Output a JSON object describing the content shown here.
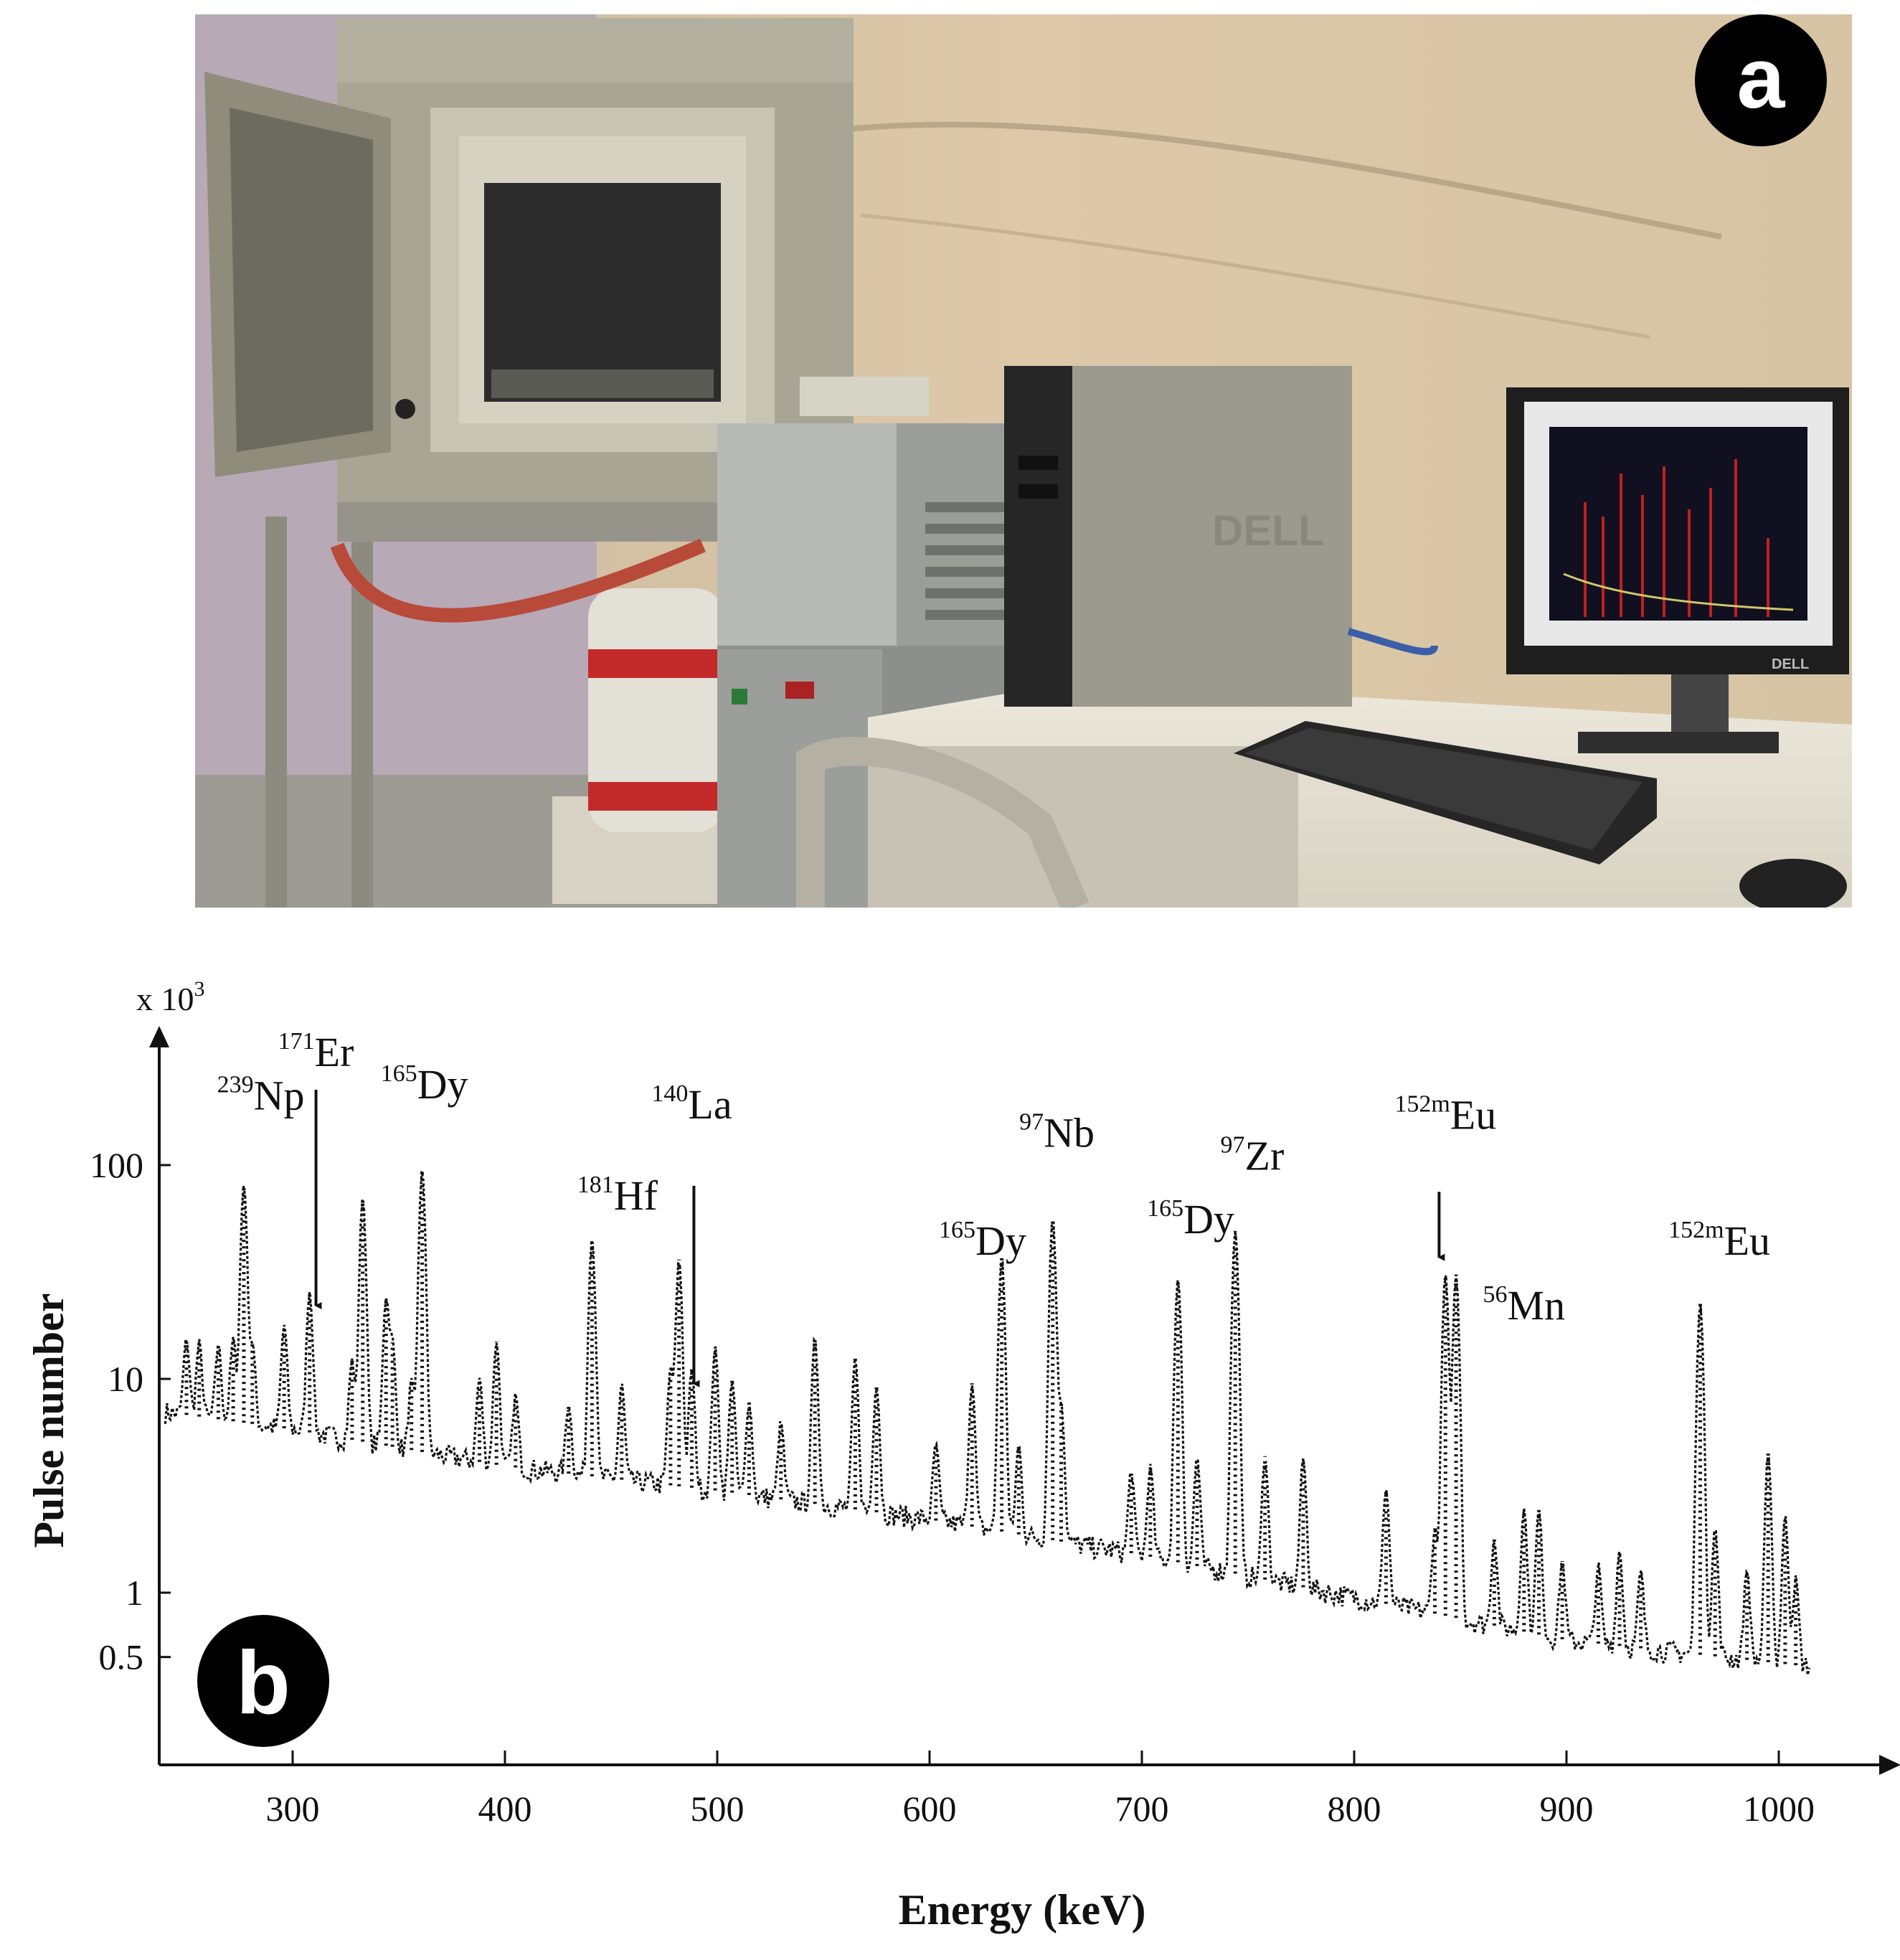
{
  "figure": {
    "panel_a_label": "a",
    "panel_b_label": "b",
    "photo": {
      "monitor_brand": "DELL",
      "tower_brand": "DELL",
      "colors": {
        "wall": "#d8c6a6",
        "furnace": "#a8a594",
        "desk": "#e3dfd2",
        "tower": "#8a8a80",
        "screen_plot": "#101020",
        "screen_peaks": "#c02020",
        "dewar_band": "#c22a2a"
      }
    }
  },
  "chart_data": {
    "type": "line",
    "xlabel": "Energy (keV)",
    "ylabel": "Pulse number",
    "y_multiplier": "x 10",
    "y_multiplier_exp": "3",
    "y_scale": "log",
    "xlim": [
      235,
      1015
    ],
    "ylim": [
      0.25,
      600
    ],
    "x_ticks": [
      300,
      400,
      500,
      600,
      700,
      800,
      900,
      1000
    ],
    "x_tick_labels": [
      "300",
      "400",
      "500",
      "600",
      "700",
      "800",
      "900",
      "1000"
    ],
    "y_ticks": [
      0.5,
      1,
      10,
      100
    ],
    "y_tick_labels": [
      "0.5",
      "1",
      "10",
      "100"
    ],
    "background": {
      "x": [
        240,
        300,
        400,
        500,
        600,
        700,
        800,
        900,
        1015
      ],
      "y": [
        7.0,
        5.8,
        3.9,
        3.0,
        2.2,
        1.5,
        0.95,
        0.6,
        0.45
      ]
    },
    "peaks": [
      {
        "x": 250,
        "y": 8.5
      },
      {
        "x": 256,
        "y": 8.0
      },
      {
        "x": 265,
        "y": 8.0
      },
      {
        "x": 272,
        "y": 9.0
      },
      {
        "x": 277,
        "y": 75
      },
      {
        "x": 281,
        "y": 8.5
      },
      {
        "x": 296,
        "y": 12
      },
      {
        "x": 308,
        "y": 20
      },
      {
        "x": 328,
        "y": 7.0
      },
      {
        "x": 333,
        "y": 65
      },
      {
        "x": 344,
        "y": 19
      },
      {
        "x": 347,
        "y": 10
      },
      {
        "x": 356,
        "y": 5.0
      },
      {
        "x": 361,
        "y": 90
      },
      {
        "x": 388,
        "y": 6.0
      },
      {
        "x": 396,
        "y": 11
      },
      {
        "x": 405,
        "y": 4.5
      },
      {
        "x": 430,
        "y": 4.0
      },
      {
        "x": 441,
        "y": 42
      },
      {
        "x": 455,
        "y": 6.0
      },
      {
        "x": 478,
        "y": 8.0
      },
      {
        "x": 482,
        "y": 33
      },
      {
        "x": 488,
        "y": 8.0
      },
      {
        "x": 499,
        "y": 11
      },
      {
        "x": 507,
        "y": 7.0
      },
      {
        "x": 515,
        "y": 5.0
      },
      {
        "x": 530,
        "y": 3.5
      },
      {
        "x": 546,
        "y": 13
      },
      {
        "x": 565,
        "y": 10
      },
      {
        "x": 575,
        "y": 7.0
      },
      {
        "x": 603,
        "y": 2.8
      },
      {
        "x": 620,
        "y": 7.5
      },
      {
        "x": 634,
        "y": 35
      },
      {
        "x": 642,
        "y": 3.0
      },
      {
        "x": 658,
        "y": 55
      },
      {
        "x": 662,
        "y": 6.0
      },
      {
        "x": 695,
        "y": 2.2
      },
      {
        "x": 704,
        "y": 2.4
      },
      {
        "x": 717,
        "y": 28
      },
      {
        "x": 726,
        "y": 3.0
      },
      {
        "x": 744,
        "y": 48
      },
      {
        "x": 758,
        "y": 3.2
      },
      {
        "x": 776,
        "y": 3.2
      },
      {
        "x": 815,
        "y": 2.2
      },
      {
        "x": 838,
        "y": 1.2
      },
      {
        "x": 843,
        "y": 30
      },
      {
        "x": 848,
        "y": 30
      },
      {
        "x": 866,
        "y": 1.1
      },
      {
        "x": 880,
        "y": 1.8
      },
      {
        "x": 887,
        "y": 1.8
      },
      {
        "x": 898,
        "y": 0.8
      },
      {
        "x": 915,
        "y": 0.75
      },
      {
        "x": 925,
        "y": 1.0
      },
      {
        "x": 935,
        "y": 0.7
      },
      {
        "x": 963,
        "y": 22
      },
      {
        "x": 970,
        "y": 1.5
      },
      {
        "x": 985,
        "y": 0.8
      },
      {
        "x": 995,
        "y": 4.0
      },
      {
        "x": 1003,
        "y": 1.8
      },
      {
        "x": 1008,
        "y": 0.7
      }
    ],
    "annotations": [
      {
        "iso": "239",
        "el": "Np",
        "tx": 285,
        "ty": 182
      },
      {
        "iso": "171",
        "el": "Er",
        "tx": 311,
        "ty": 290,
        "arrow": true,
        "ax": 311,
        "from": 225,
        "to": 22
      },
      {
        "iso": "165",
        "el": "Dy",
        "tx": 362,
        "ty": 205
      },
      {
        "iso": "140",
        "el": "La",
        "tx": 488,
        "ty": 165,
        "arrow": true,
        "ax": 489,
        "from": 80,
        "to": 9.5
      },
      {
        "iso": "181",
        "el": "Hf",
        "tx": 453,
        "ty": 62
      },
      {
        "iso": "97",
        "el": "Nb",
        "tx": 660,
        "ty": 122
      },
      {
        "iso": "165",
        "el": "Dy",
        "tx": 625,
        "ty": 38
      },
      {
        "iso": "165",
        "el": "Dy",
        "tx": 723,
        "ty": 48
      },
      {
        "iso": "97",
        "el": "Zr",
        "tx": 752,
        "ty": 95
      },
      {
        "iso": "152m",
        "el": "Eu",
        "tx": 843,
        "ty": 148,
        "arrow": true,
        "ax": 840,
        "from": 75,
        "to": 37
      },
      {
        "iso": "56",
        "el": "Mn",
        "tx": 880,
        "ty": 19
      },
      {
        "iso": "152m",
        "el": "Eu",
        "tx": 972,
        "ty": 38
      }
    ]
  }
}
